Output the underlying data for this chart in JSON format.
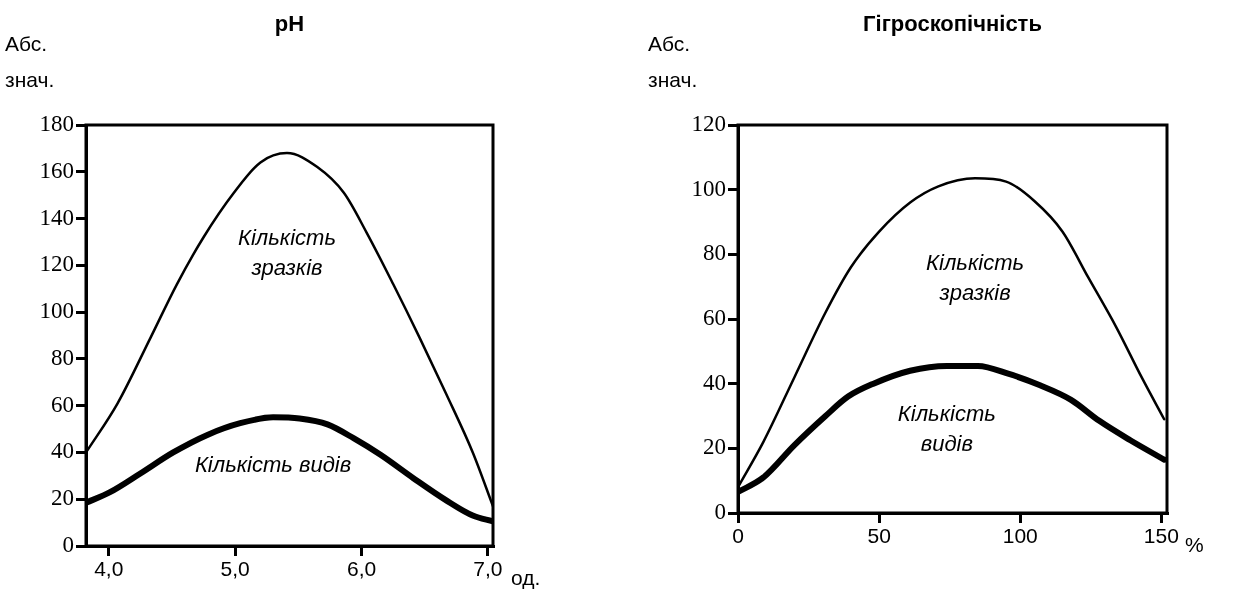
{
  "chart_data": [
    {
      "type": "line",
      "title": "pH",
      "ylabel": "Абс. знач.",
      "xlabel": "од.",
      "xlim": [
        3.82,
        7.04
      ],
      "ylim": [
        0,
        180
      ],
      "xticks": [
        {
          "value": 4,
          "label": "4,0"
        },
        {
          "value": 5,
          "label": "5,0"
        },
        {
          "value": 6,
          "label": "6,0"
        },
        {
          "value": 7,
          "label": "7,0"
        }
      ],
      "yticks": [
        0,
        20,
        40,
        60,
        80,
        100,
        120,
        140,
        160,
        180
      ],
      "grid": false,
      "legend": false,
      "marker": "none",
      "line_style": "solid",
      "series": [
        {
          "name": "Кількість зразків",
          "color": "#000000",
          "x": [
            3.82,
            4.07,
            4.33,
            4.54,
            4.75,
            4.99,
            5.2,
            5.41,
            5.65,
            5.86,
            6.04,
            6.25,
            6.46,
            6.67,
            6.88,
            7.04
          ],
          "values": [
            40,
            61,
            89,
            112,
            132,
            151,
            164,
            168,
            162,
            151,
            134,
            112,
            89,
            65,
            40,
            17
          ]
        },
        {
          "name": "Кількість видів",
          "color": "#000000",
          "x": [
            3.82,
            4.01,
            4.25,
            4.51,
            4.78,
            5.04,
            5.3,
            5.51,
            5.73,
            5.94,
            6.15,
            6.41,
            6.67,
            6.88,
            7.04
          ],
          "values": [
            18.5,
            23,
            31,
            40,
            47.5,
            52.5,
            55,
            54.5,
            52,
            46,
            39,
            29,
            19.5,
            13,
            10.5
          ]
        }
      ]
    },
    {
      "type": "line",
      "title": "Гігроскопічність",
      "ylabel": "Абс. знач.",
      "xlabel": "%",
      "xlim": [
        0,
        152
      ],
      "ylim": [
        0,
        120
      ],
      "xticks": [
        0,
        50,
        100,
        150
      ],
      "yticks": [
        0,
        20,
        40,
        60,
        80,
        100,
        120
      ],
      "grid": false,
      "legend": false,
      "marker": "none",
      "line_style": "solid",
      "series": [
        {
          "name": "Кількість зразків",
          "color": "#000000",
          "x": [
            0,
            9,
            20,
            31,
            40,
            50,
            61,
            71,
            84,
            95,
            105,
            115,
            124,
            134,
            143,
            151
          ],
          "values": [
            8,
            22,
            42,
            62,
            76,
            87,
            96,
            101,
            103.5,
            102.5,
            96.5,
            87,
            73,
            57.5,
            42,
            29
          ]
        },
        {
          "name": "Кількість видів",
          "color": "#000000",
          "x": [
            0,
            9,
            20,
            31,
            39,
            48,
            61,
            74,
            85,
            96,
            107,
            118,
            128,
            139,
            151
          ],
          "values": [
            6.5,
            11,
            21,
            30,
            36,
            40,
            44,
            45.5,
            45.5,
            43,
            39.5,
            35,
            28.5,
            22.5,
            16.5
          ]
        }
      ]
    }
  ]
}
